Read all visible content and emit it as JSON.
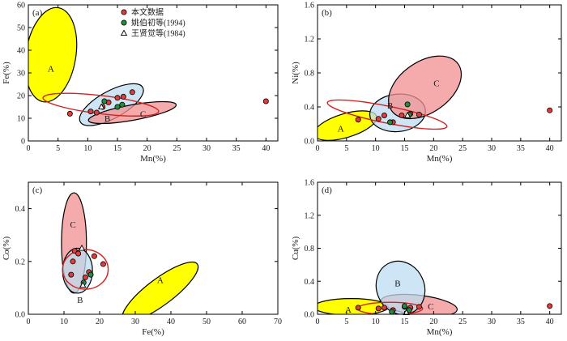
{
  "colors": {
    "this_study": "#e03c3c",
    "yao": "#1f8f3a",
    "wang": "#ffffff",
    "region_A": "#ffff00",
    "region_B": "#bcdcf0",
    "region_C": "#f28f8f",
    "outline_red": "#d42020"
  },
  "legend": {
    "items": [
      {
        "label": "本文数据",
        "marker": "circle",
        "color": "#e03c3c"
      },
      {
        "label": "姚伯初等(1994)",
        "marker": "circle",
        "color": "#1f8f3a"
      },
      {
        "label": "王贤觉等(1984)",
        "marker": "triangle",
        "color": "#ffffff"
      }
    ]
  },
  "chart_data": [
    {
      "id": "a",
      "type": "scatter",
      "tag": "(a)",
      "xlabel": "Mn(%)",
      "ylabel": "Fe(%)",
      "xlim": [
        0,
        42
      ],
      "ylim": [
        0,
        60
      ],
      "xticks": [
        0,
        5,
        10,
        15,
        20,
        25,
        30,
        35,
        40
      ],
      "yticks": [
        0,
        10,
        20,
        30,
        40,
        50,
        60
      ],
      "yticklabels": [
        "0",
        "10",
        "20",
        "30",
        "40",
        "50",
        "60"
      ],
      "legend": true,
      "regions": [
        {
          "label": "A",
          "cx": 3.8,
          "cy": 38,
          "rx": 4.2,
          "ry": 21,
          "angle": 0,
          "tilt": 0.16
        },
        {
          "label": "B",
          "cx": 14,
          "cy": 16,
          "rx": 6,
          "ry": 6,
          "tilt": -0.55
        },
        {
          "label": "C",
          "cx": 17.5,
          "cy": 12.5,
          "rx": 7.5,
          "ry": 3.4,
          "tilt": -0.18
        }
      ],
      "region_label_pos": {
        "A": [
          3.8,
          32
        ],
        "B": [
          13.3,
          10
        ],
        "C": [
          19.3,
          12
        ]
      },
      "red_outline": {
        "cx": 12.2,
        "cy": 16,
        "rx": 9.8,
        "ry": 4,
        "tilt": 0.12
      },
      "series": [
        {
          "name": "本文数据",
          "marker": "this_study",
          "points": [
            [
              7,
              12
            ],
            [
              10.5,
              13
            ],
            [
              11.5,
              12.5
            ],
            [
              12.5,
              15
            ],
            [
              13.5,
              17
            ],
            [
              15,
              19
            ],
            [
              16,
              19.5
            ],
            [
              17.5,
              21.5
            ],
            [
              40,
              17.5
            ]
          ]
        },
        {
          "name": "姚伯初等(1994)",
          "marker": "yao",
          "points": [
            [
              12.8,
              17.5
            ],
            [
              15,
              15
            ],
            [
              15.8,
              16
            ]
          ]
        },
        {
          "name": "王贤觉等(1984)",
          "marker": "wang",
          "points": [
            [
              12.3,
              15
            ]
          ]
        }
      ]
    },
    {
      "id": "b",
      "type": "scatter",
      "tag": "(b)",
      "xlabel": "Mn(%)",
      "ylabel": "Ni(%)",
      "xlim": [
        0,
        42
      ],
      "ylim": [
        0,
        1.6
      ],
      "xticks": [
        0,
        5,
        10,
        15,
        20,
        25,
        30,
        35,
        40
      ],
      "yticks": [
        0,
        0.4,
        0.8,
        1.2,
        1.6
      ],
      "yticklabels": [
        "0.0",
        "0.4",
        "0.8",
        "1.2",
        "1.6"
      ],
      "legend": false,
      "regions": [
        {
          "label": "A",
          "cx": 4.8,
          "cy": 0.18,
          "rx": 5.6,
          "ry": 0.14,
          "tilt": -0.3
        },
        {
          "label": "B",
          "cx": 13.8,
          "cy": 0.33,
          "rx": 4.8,
          "ry": 0.22,
          "tilt": -0.1
        },
        {
          "label": "C",
          "cx": 18.5,
          "cy": 0.63,
          "rx": 7,
          "ry": 0.3,
          "tilt": -0.7
        }
      ],
      "region_label_pos": {
        "A": [
          4,
          0.15
        ],
        "B": [
          12.5,
          0.42
        ],
        "C": [
          20.5,
          0.68
        ]
      },
      "red_outline": {
        "cx": 12,
        "cy": 0.31,
        "rx": 10.5,
        "ry": 0.1,
        "tilt": 0.2
      },
      "series": [
        {
          "name": "本文数据",
          "marker": "this_study",
          "points": [
            [
              7,
              0.25
            ],
            [
              10.5,
              0.26
            ],
            [
              11.5,
              0.3
            ],
            [
              13,
              0.22
            ],
            [
              14.5,
              0.3
            ],
            [
              16,
              0.32
            ],
            [
              17.5,
              0.31
            ],
            [
              40,
              0.36
            ]
          ]
        },
        {
          "name": "姚伯初等(1994)",
          "marker": "yao",
          "points": [
            [
              12.5,
              0.22
            ],
            [
              15.5,
              0.43
            ],
            [
              15.8,
              0.31
            ]
          ]
        },
        {
          "name": "王贤觉等(1984)",
          "marker": "wang",
          "points": [
            [
              15.5,
              0.3
            ]
          ]
        }
      ]
    },
    {
      "id": "c",
      "type": "scatter",
      "tag": "(c)",
      "xlabel": "Fe(%)",
      "ylabel": "Co(%)",
      "xlim": [
        0,
        70
      ],
      "ylim": [
        0,
        0.5
      ],
      "xticks": [
        0,
        10,
        20,
        30,
        40,
        50,
        60,
        70
      ],
      "yticks": [
        0,
        0.2,
        0.4
      ],
      "yticklabels": [
        "0.0",
        "0.2",
        "0.4"
      ],
      "legend": false,
      "regions": [
        {
          "label": "C",
          "cx": 12.8,
          "cy": 0.27,
          "rx": 3.5,
          "ry": 0.19,
          "tilt": 0
        },
        {
          "label": "B",
          "cx": 13.8,
          "cy": 0.165,
          "rx": 4.2,
          "ry": 0.085,
          "tilt": 0
        },
        {
          "label": "A",
          "cx": 37,
          "cy": 0.085,
          "rx": 13,
          "ry": 0.05,
          "tilt": -0.75
        }
      ],
      "region_label_pos": {
        "C": [
          12.5,
          0.34
        ],
        "B": [
          14.5,
          0.055
        ],
        "A": [
          37,
          0.13
        ]
      },
      "red_outline": {
        "cx": 16,
        "cy": 0.17,
        "rx": 6.4,
        "ry": 0.075,
        "tilt": 0
      },
      "series": [
        {
          "name": "本文数据",
          "marker": "this_study",
          "points": [
            [
              12,
              0.15
            ],
            [
              12.5,
              0.2
            ],
            [
              13,
              0.24
            ],
            [
              14,
              0.23
            ],
            [
              18.5,
              0.22
            ],
            [
              21,
              0.19
            ],
            [
              16,
              0.14
            ],
            [
              17,
              0.16
            ]
          ]
        },
        {
          "name": "姚伯初等(1994)",
          "marker": "yao",
          "points": [
            [
              15.5,
              0.12
            ],
            [
              17.5,
              0.15
            ]
          ]
        },
        {
          "name": "王贤觉等(1984)",
          "marker": "wang",
          "points": [
            [
              15,
              0.25
            ],
            [
              15.3,
              0.11
            ]
          ]
        }
      ]
    },
    {
      "id": "d",
      "type": "scatter",
      "tag": "(d)",
      "xlabel": "Mn(%)",
      "ylabel": "Cu(%)",
      "xlim": [
        0,
        42
      ],
      "ylim": [
        0,
        1.6
      ],
      "xticks": [
        0,
        5,
        10,
        15,
        20,
        25,
        30,
        35,
        40
      ],
      "yticks": [
        0,
        0.4,
        0.8,
        1.2,
        1.6
      ],
      "yticklabels": [
        "0.0",
        "0.4",
        "0.8",
        "1.2",
        "1.6"
      ],
      "legend": false,
      "regions": [
        {
          "label": "A",
          "cx": 5.8,
          "cy": 0.09,
          "rx": 6.4,
          "ry": 0.1,
          "tilt": 0
        },
        {
          "label": "C",
          "cx": 17.5,
          "cy": 0.11,
          "rx": 6.6,
          "ry": 0.12,
          "tilt": 0.12
        },
        {
          "label": "B",
          "cx": 14.3,
          "cy": 0.32,
          "rx": 4.1,
          "ry": 0.33,
          "tilt": -0.45
        }
      ],
      "region_label_pos": {
        "A": [
          5.3,
          0.06
        ],
        "B": [
          13.8,
          0.38
        ],
        "C": [
          19.5,
          0.1
        ]
      },
      "red_outline": {
        "cx": 12.5,
        "cy": 0.07,
        "rx": 5.6,
        "ry": 0.075,
        "tilt": 0
      },
      "series": [
        {
          "name": "本文数据",
          "marker": "this_study",
          "points": [
            [
              7,
              0.08
            ],
            [
              10.5,
              0.07
            ],
            [
              11.5,
              0.08
            ],
            [
              13,
              0.05
            ],
            [
              15,
              0.09
            ],
            [
              16,
              0.08
            ],
            [
              17.5,
              0.09
            ],
            [
              40,
              0.1
            ]
          ]
        },
        {
          "name": "姚伯初等(1994)",
          "marker": "yao",
          "points": [
            [
              12.8,
              0.03
            ],
            [
              15,
              0.1
            ],
            [
              15.8,
              0.05
            ]
          ]
        },
        {
          "name": "王贤觉等(1984)",
          "marker": "wang",
          "points": [
            [
              15.3,
              0.02
            ]
          ]
        }
      ]
    }
  ]
}
